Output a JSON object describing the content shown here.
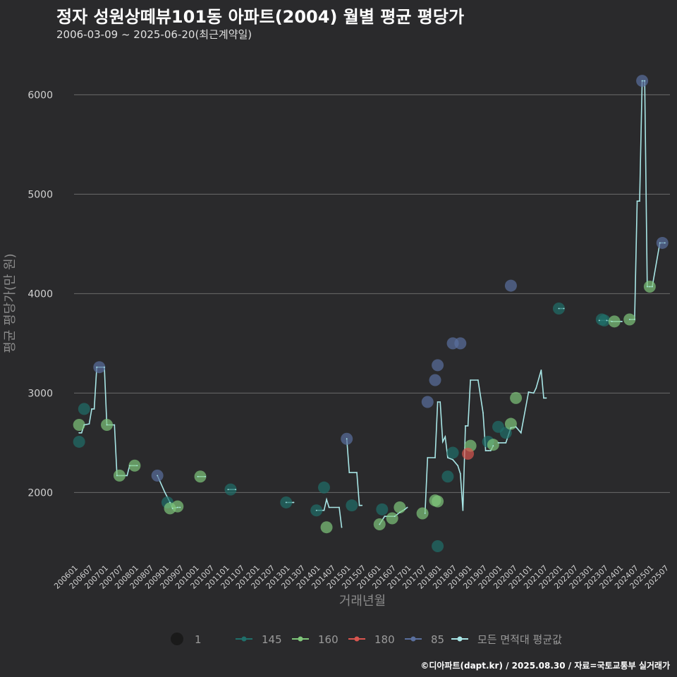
{
  "title": "정자 성원상떼뷰101동 아파트(2004) 월별 평균 평당가",
  "subtitle": "2006-03-09 ~ 2025-06-20(최근계약일)",
  "caption": "©디아파트(dapt.kr) / 2025.08.30 / 자료=국토교통부 실거래가",
  "colors": {
    "background": "#2a2a2c",
    "grid": "#6a6a6a",
    "s145": "#1f6f6a",
    "s160": "#7fc67a",
    "s180": "#d9554f",
    "s85": "#5a6f9e",
    "avg": "#a8e6e6"
  },
  "chart_data": {
    "type": "scatter",
    "title": "정자 성원상떼뷰101동 아파트(2004) 월별 평균 평당가",
    "xlabel": "거래년월",
    "ylabel": "평균 평당가(만 원)",
    "ylim": [
      1350,
      6350
    ],
    "yticks": [
      2000,
      3000,
      4000,
      5000,
      6000
    ],
    "x_range": [
      "2006-01",
      "2025-09"
    ],
    "xticks": [
      "200601",
      "200607",
      "200701",
      "200707",
      "200801",
      "200807",
      "200901",
      "200907",
      "201001",
      "201007",
      "201101",
      "201107",
      "201201",
      "201207",
      "201301",
      "201307",
      "201401",
      "201407",
      "201501",
      "201507",
      "201601",
      "201607",
      "201701",
      "201707",
      "201801",
      "201807",
      "201901",
      "201907",
      "202001",
      "202007",
      "202101",
      "202107",
      "202201",
      "202207",
      "202301",
      "202307",
      "202401",
      "202407",
      "202501",
      "202507"
    ],
    "legend": {
      "size_label": "1",
      "entries": [
        {
          "key": "s145",
          "label": "145"
        },
        {
          "key": "s160",
          "label": "160"
        },
        {
          "key": "s180",
          "label": "180"
        },
        {
          "key": "s85",
          "label": "85"
        },
        {
          "key": "avg",
          "label": "모든 면적대 평균값"
        }
      ]
    },
    "series": [
      {
        "name": "145",
        "key": "s145",
        "points": [
          [
            "2006-03",
            2510
          ],
          [
            "2006-05",
            2840
          ],
          [
            "2009-02",
            1900
          ],
          [
            "2011-03",
            2030
          ],
          [
            "2013-01",
            1900
          ],
          [
            "2014-01",
            1820
          ],
          [
            "2014-04",
            2050
          ],
          [
            "2015-03",
            1870
          ],
          [
            "2016-03",
            1830
          ],
          [
            "2018-01",
            1460
          ],
          [
            "2018-05",
            2160
          ],
          [
            "2018-07",
            2400
          ],
          [
            "2019-09",
            2510
          ],
          [
            "2020-01",
            2660
          ],
          [
            "2020-04",
            2600
          ],
          [
            "2022-01",
            3850
          ],
          [
            "2023-06",
            3740
          ],
          [
            "2023-07",
            3730
          ]
        ]
      },
      {
        "name": "160",
        "key": "s160",
        "points": [
          [
            "2006-03",
            2680
          ],
          [
            "2007-02",
            2680
          ],
          [
            "2007-07",
            2170
          ],
          [
            "2008-01",
            2270
          ],
          [
            "2009-03",
            1840
          ],
          [
            "2009-06",
            1860
          ],
          [
            "2010-03",
            2160
          ],
          [
            "2014-05",
            1650
          ],
          [
            "2016-02",
            1680
          ],
          [
            "2016-07",
            1740
          ],
          [
            "2016-10",
            1850
          ],
          [
            "2017-07",
            1790
          ],
          [
            "2017-12",
            1920
          ],
          [
            "2018-01",
            1910
          ],
          [
            "2019-02",
            2470
          ],
          [
            "2019-11",
            2480
          ],
          [
            "2020-06",
            2690
          ],
          [
            "2020-08",
            2950
          ],
          [
            "2023-11",
            3720
          ],
          [
            "2024-05",
            3740
          ],
          [
            "2025-01",
            4070
          ]
        ]
      },
      {
        "name": "180",
        "key": "s180",
        "points": [
          [
            "2019-01",
            2390
          ]
        ]
      },
      {
        "name": "85",
        "key": "s85",
        "points": [
          [
            "2006-11",
            3260
          ],
          [
            "2008-10",
            2170
          ],
          [
            "2015-01",
            2540
          ],
          [
            "2017-09",
            2910
          ],
          [
            "2017-12",
            3130
          ],
          [
            "2018-01",
            3280
          ],
          [
            "2018-07",
            3500
          ],
          [
            "2018-10",
            3500
          ],
          [
            "2020-06",
            4080
          ],
          [
            "2024-10",
            6140
          ],
          [
            "2025-06",
            4510
          ]
        ]
      }
    ],
    "average_segments": [
      [
        [
          "2006-03",
          2600
        ],
        [
          "2006-04",
          2600
        ],
        [
          "2006-05",
          2680
        ],
        [
          "2006-07",
          2690
        ],
        [
          "2006-08",
          2840
        ],
        [
          "2006-09",
          2840
        ],
        [
          "2006-10",
          3260
        ],
        [
          "2007-01",
          3260
        ],
        [
          "2007-02",
          2680
        ],
        [
          "2007-05",
          2680
        ],
        [
          "2007-06",
          2170
        ],
        [
          "2007-10",
          2170
        ],
        [
          "2007-11",
          2270
        ],
        [
          "2008-02",
          2270
        ]
      ],
      [
        [
          "2008-10",
          2170
        ],
        [
          "2009-01",
          2000
        ],
        [
          "2009-03",
          1900
        ],
        [
          "2009-04",
          1840
        ],
        [
          "2009-06",
          1850
        ],
        [
          "2009-07",
          1850
        ]
      ],
      [
        [
          "2010-02",
          2160
        ],
        [
          "2010-05",
          2160
        ]
      ],
      [
        [
          "2011-02",
          2030
        ],
        [
          "2011-05",
          2030
        ]
      ],
      [
        [
          "2013-01",
          1900
        ],
        [
          "2013-04",
          1900
        ]
      ],
      [
        [
          "2014-01",
          1820
        ],
        [
          "2014-04",
          1820
        ],
        [
          "2014-05",
          1930
        ],
        [
          "2014-06",
          1850
        ],
        [
          "2014-10",
          1850
        ],
        [
          "2014-11",
          1650
        ]
      ],
      [
        [
          "2015-01",
          2540
        ],
        [
          "2015-02",
          2200
        ],
        [
          "2015-05",
          2200
        ],
        [
          "2015-06",
          1870
        ],
        [
          "2015-07",
          1870
        ]
      ],
      [
        [
          "2016-02",
          1680
        ],
        [
          "2016-04",
          1760
        ],
        [
          "2016-08",
          1760
        ],
        [
          "2016-10",
          1800
        ],
        [
          "2016-12",
          1830
        ],
        [
          "2017-01",
          1850
        ]
      ],
      [
        [
          "2017-08",
          1790
        ],
        [
          "2017-09",
          2350
        ],
        [
          "2017-12",
          2350
        ],
        [
          "2018-01",
          2910
        ],
        [
          "2018-02",
          2910
        ],
        [
          "2018-03",
          2510
        ],
        [
          "2018-04",
          2560
        ],
        [
          "2018-05",
          2350
        ],
        [
          "2018-07",
          2330
        ],
        [
          "2018-09",
          2270
        ],
        [
          "2018-10",
          2190
        ],
        [
          "2018-11",
          1820
        ],
        [
          "2018-12",
          2670
        ],
        [
          "2019-01",
          2670
        ],
        [
          "2019-02",
          3130
        ],
        [
          "2019-05",
          3130
        ],
        [
          "2019-07",
          2800
        ],
        [
          "2019-08",
          2420
        ],
        [
          "2019-09",
          2420
        ],
        [
          "2019-10",
          2420
        ],
        [
          "2019-11",
          2470
        ]
      ],
      [
        [
          "2020-01",
          2500
        ],
        [
          "2020-04",
          2500
        ],
        [
          "2020-06",
          2650
        ],
        [
          "2020-08",
          2660
        ],
        [
          "2020-10",
          2600
        ],
        [
          "2021-01",
          3010
        ],
        [
          "2021-03",
          3000
        ],
        [
          "2021-04",
          3050
        ],
        [
          "2021-06",
          3230
        ],
        [
          "2021-07",
          2950
        ],
        [
          "2021-08",
          2950
        ]
      ],
      [
        [
          "2022-01",
          3850
        ],
        [
          "2022-03",
          3850
        ]
      ],
      [
        [
          "2023-05",
          3730
        ],
        [
          "2023-08",
          3730
        ],
        [
          "2023-10",
          3720
        ],
        [
          "2024-02",
          3720
        ]
      ],
      [
        [
          "2024-05",
          3740
        ],
        [
          "2024-07",
          3740
        ],
        [
          "2024-08",
          4930
        ],
        [
          "2024-09",
          4930
        ],
        [
          "2024-10",
          6140
        ],
        [
          "2024-11",
          6140
        ],
        [
          "2024-12",
          4070
        ],
        [
          "2025-01",
          4070
        ],
        [
          "2025-02",
          4070
        ],
        [
          "2025-05",
          4510
        ],
        [
          "2025-07",
          4510
        ]
      ]
    ]
  }
}
